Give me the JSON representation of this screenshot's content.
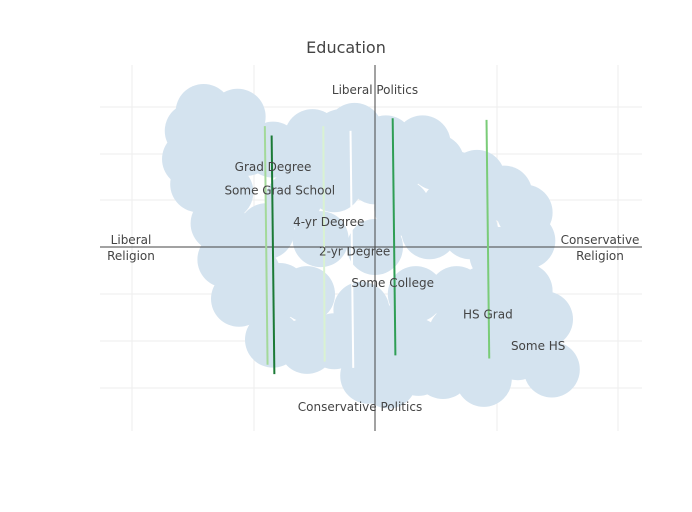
{
  "chart_data": {
    "type": "scatter",
    "title": "Education",
    "grid": true,
    "axis_labels": {
      "left": [
        "Liberal",
        "Religion"
      ],
      "right": [
        "Conservative",
        "Religion"
      ],
      "top": "Liberal Politics",
      "bottom": "Conservative Politics"
    },
    "categories": [
      "Grad Degree",
      "Some Grad School",
      "4-yr Degree",
      "2-yr Degree",
      "Some College",
      "HS Grad",
      "Some HS"
    ],
    "label_points": [
      {
        "x": -0.75,
        "y": 0.51
      },
      {
        "x": -0.7,
        "y": 0.36
      },
      {
        "x": -0.34,
        "y": 0.16
      },
      {
        "x": -0.15,
        "y": -0.03
      },
      {
        "x": 0.13,
        "y": -0.23
      },
      {
        "x": 0.83,
        "y": -0.43
      },
      {
        "x": 1.2,
        "y": -0.63
      }
    ],
    "segments": [
      {
        "x1": -0.81,
        "y1": 0.77,
        "x2": -0.79,
        "y2": -0.75,
        "color": "#a3d99a"
      },
      {
        "x1": -0.76,
        "y1": 0.71,
        "x2": -0.74,
        "y2": -0.81,
        "color": "#1b7a36"
      },
      {
        "x1": -0.38,
        "y1": 0.77,
        "x2": -0.37,
        "y2": -0.73,
        "color": "#d9f2d2"
      },
      {
        "x1": -0.18,
        "y1": 0.74,
        "x2": -0.16,
        "y2": -0.77,
        "color": "#ffffff"
      },
      {
        "x1": 0.13,
        "y1": 0.82,
        "x2": 0.15,
        "y2": -0.69,
        "color": "#2f9e55"
      },
      {
        "x1": 0.82,
        "y1": 0.81,
        "x2": 0.84,
        "y2": -0.71,
        "color": "#7acc78"
      }
    ],
    "cloud": [
      {
        "x": -1.26,
        "y": 0.86
      },
      {
        "x": -1.01,
        "y": 0.83
      },
      {
        "x": -1.34,
        "y": 0.74
      },
      {
        "x": -1.28,
        "y": 0.58
      },
      {
        "x": -1.36,
        "y": 0.56
      },
      {
        "x": -1.15,
        "y": 0.61
      },
      {
        "x": -0.95,
        "y": 0.63
      },
      {
        "x": -0.75,
        "y": 0.62
      },
      {
        "x": -0.6,
        "y": 0.6
      },
      {
        "x": -0.46,
        "y": 0.7
      },
      {
        "x": -0.25,
        "y": 0.7
      },
      {
        "x": -0.15,
        "y": 0.74
      },
      {
        "x": 0.08,
        "y": 0.66
      },
      {
        "x": 0.35,
        "y": 0.66
      },
      {
        "x": 0.45,
        "y": 0.54
      },
      {
        "x": 0.6,
        "y": 0.43
      },
      {
        "x": 0.75,
        "y": 0.44
      },
      {
        "x": 0.95,
        "y": 0.34
      },
      {
        "x": 1.1,
        "y": 0.22
      },
      {
        "x": 1.12,
        "y": 0.04
      },
      {
        "x": -1.3,
        "y": 0.4
      },
      {
        "x": -1.1,
        "y": 0.35
      },
      {
        "x": -1.15,
        "y": 0.15
      },
      {
        "x": -1.1,
        "y": -0.08
      },
      {
        "x": -0.9,
        "y": -0.17
      },
      {
        "x": -1.0,
        "y": -0.33
      },
      {
        "x": -0.7,
        "y": -0.28
      },
      {
        "x": -0.75,
        "y": -0.59
      },
      {
        "x": -0.5,
        "y": -0.63
      },
      {
        "x": -0.3,
        "y": -0.6
      },
      {
        "x": -0.05,
        "y": -0.82
      },
      {
        "x": 0.1,
        "y": -0.85
      },
      {
        "x": 0.3,
        "y": -0.63
      },
      {
        "x": 0.32,
        "y": -0.77
      },
      {
        "x": 0.5,
        "y": -0.79
      },
      {
        "x": 0.7,
        "y": -0.67
      },
      {
        "x": 0.8,
        "y": -0.84
      },
      {
        "x": 0.95,
        "y": -0.5
      },
      {
        "x": 1.1,
        "y": -0.28
      },
      {
        "x": 1.25,
        "y": -0.46
      },
      {
        "x": 1.3,
        "y": -0.78
      },
      {
        "x": 1.05,
        "y": -0.67
      },
      {
        "x": -0.6,
        "y": 0.3
      },
      {
        "x": -0.3,
        "y": 0.4
      },
      {
        "x": 0.0,
        "y": 0.45
      },
      {
        "x": 0.2,
        "y": 0.25
      },
      {
        "x": -0.4,
        "y": 0.05
      },
      {
        "x": 0.0,
        "y": 0.0
      },
      {
        "x": 0.4,
        "y": 0.1
      },
      {
        "x": 0.7,
        "y": 0.1
      },
      {
        "x": 0.9,
        "y": -0.05
      },
      {
        "x": -0.5,
        "y": -0.3
      },
      {
        "x": -0.1,
        "y": -0.4
      },
      {
        "x": 0.3,
        "y": -0.3
      },
      {
        "x": 0.6,
        "y": -0.3
      },
      {
        "x": 0.8,
        "y": -0.3
      },
      {
        "x": -0.2,
        "y": -0.6
      },
      {
        "x": 0.1,
        "y": -0.55
      },
      {
        "x": 0.6,
        "y": -0.55
      },
      {
        "x": -0.8,
        "y": 0.1
      },
      {
        "x": -0.3,
        "y": 0.6
      },
      {
        "x": 0.2,
        "y": 0.55
      },
      {
        "x": 0.55,
        "y": 0.25
      }
    ],
    "colors": {
      "cloud": "#d4e3ef",
      "grid": "#eeeeee",
      "axis": "#444444",
      "text": "#444444"
    },
    "xlim": [
      -2,
      2
    ],
    "ylim": [
      -1.2,
      1.2
    ]
  }
}
